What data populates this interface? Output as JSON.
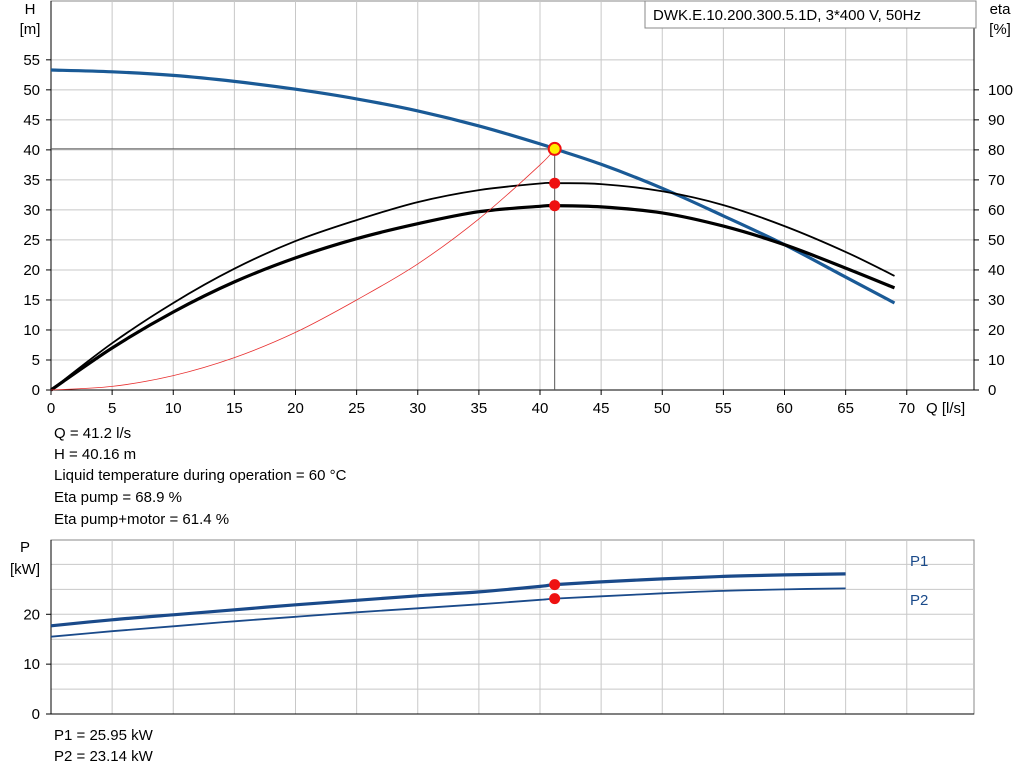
{
  "model_label": "DWK.E.10.200.300.5.1D, 3*400  V, 50Hz",
  "operating_point_info": [
    "Q = 41.2 l/s",
    "H = 40.16 m",
    "Liquid temperature during operation = 60 °C",
    "Eta pump = 68.9 %",
    "Eta pump+motor = 61.4 %"
  ],
  "power_info": [
    "P1 = 25.95 kW",
    "P2 = 23.14 kW"
  ],
  "colors": {
    "head_curve": "#1a5a96",
    "efficiency_curve": "#000000",
    "system_curve": "#e83030",
    "power_curve": "#1a4a8a",
    "marker": "#ee1111",
    "duty_marker": "#ffee00",
    "grid": "#c8c8c8"
  },
  "chart_data": [
    {
      "type": "line",
      "xlabel": "Q [l/s]",
      "ylabel": "H\n[m]",
      "y2label": "eta\n[%]",
      "xlim": [
        0,
        70
      ],
      "ylim": [
        0,
        55
      ],
      "y2lim": [
        0,
        110
      ],
      "x_ticks": [
        0,
        5,
        10,
        15,
        20,
        25,
        30,
        35,
        40,
        45,
        50,
        55,
        60,
        65,
        70
      ],
      "y_ticks": [
        0,
        5,
        10,
        15,
        20,
        25,
        30,
        35,
        40,
        45,
        50,
        55
      ],
      "y2_ticks": [
        0,
        10,
        20,
        30,
        40,
        50,
        60,
        70,
        80,
        90,
        100
      ],
      "grid": true,
      "series": [
        {
          "name": "",
          "axis": "left",
          "role": "head",
          "x": [
            0,
            5,
            10,
            15,
            20,
            25,
            30,
            35,
            40,
            41.2,
            45,
            50,
            55,
            60,
            65,
            69
          ],
          "y": [
            53.3,
            53.0,
            52.4,
            51.4,
            50.1,
            48.5,
            46.5,
            44.0,
            41.0,
            40.16,
            37.6,
            33.6,
            29.0,
            24.2,
            18.8,
            14.5
          ]
        },
        {
          "name": "",
          "axis": "right",
          "role": "eta_pump",
          "x": [
            0,
            5,
            10,
            15,
            20,
            25,
            30,
            35,
            40,
            41.2,
            45,
            50,
            55,
            60,
            65,
            69
          ],
          "y": [
            0,
            15.6,
            29.0,
            40.4,
            49.6,
            56.6,
            62.6,
            66.6,
            68.8,
            68.9,
            68.6,
            66.2,
            61.6,
            54.6,
            46.0,
            38.0
          ]
        },
        {
          "name": "",
          "axis": "right",
          "role": "eta_pump_motor",
          "x": [
            0,
            5,
            10,
            15,
            20,
            25,
            30,
            35,
            40,
            41.2,
            45,
            50,
            55,
            60,
            65,
            69
          ],
          "y": [
            0,
            14.0,
            26.0,
            36.0,
            44.0,
            50.4,
            55.4,
            59.4,
            61.2,
            61.4,
            61.0,
            59.0,
            54.6,
            48.4,
            40.6,
            34.0
          ]
        },
        {
          "name": "",
          "axis": "left",
          "role": "system",
          "x": [
            0,
            5,
            10,
            15,
            20,
            25,
            30,
            35,
            40,
            41.2
          ],
          "y": [
            0,
            0.6,
            2.4,
            5.4,
            9.6,
            15.0,
            21.0,
            28.5,
            37.5,
            40.16
          ]
        }
      ],
      "operating_point": {
        "q": 41.2,
        "h": 40.16,
        "eta_pump": 68.9,
        "eta_pump_motor": 61.4
      }
    },
    {
      "type": "line",
      "ylabel": "P\n[kW]",
      "xlim": [
        0,
        70
      ],
      "ylim": [
        0,
        30
      ],
      "y_ticks": [
        0,
        10,
        20
      ],
      "grid": true,
      "series": [
        {
          "name": "P1",
          "x": [
            0,
            5,
            10,
            15,
            20,
            25,
            30,
            35,
            40,
            41.2,
            45,
            50,
            55,
            60,
            65,
            70
          ],
          "y": [
            17.7,
            18.9,
            19.9,
            20.9,
            21.9,
            22.8,
            23.7,
            24.5,
            25.6,
            25.95,
            26.5,
            27.1,
            27.6,
            27.9,
            28.1,
            28.1
          ]
        },
        {
          "name": "P2",
          "x": [
            0,
            5,
            10,
            15,
            20,
            25,
            30,
            35,
            40,
            41.2,
            45,
            50,
            55,
            60,
            65,
            70
          ],
          "y": [
            15.5,
            16.6,
            17.6,
            18.6,
            19.5,
            20.4,
            21.2,
            22.0,
            22.9,
            23.14,
            23.6,
            24.2,
            24.7,
            25.0,
            25.2,
            25.2
          ]
        }
      ],
      "operating_point": {
        "q": 41.2,
        "p1": 25.95,
        "p2": 23.14
      }
    }
  ]
}
